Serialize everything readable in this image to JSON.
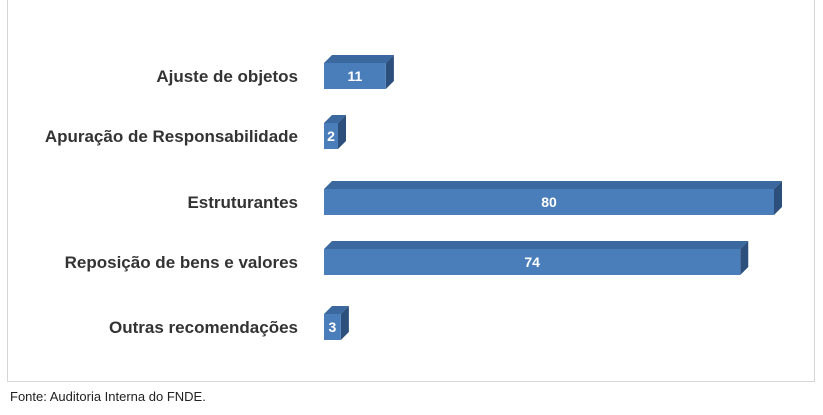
{
  "chart_data": {
    "type": "bar",
    "orientation": "horizontal",
    "categories": [
      "Ajuste de objetos",
      "Apuração de Responsabilidade",
      "Estruturantes",
      "Reposição de bens e valores",
      "Outras recomendações"
    ],
    "values": [
      11,
      2,
      80,
      74,
      3
    ],
    "xlim": [
      0,
      80
    ],
    "grid": false,
    "legend": "none",
    "bar_color": "#4a7ebb"
  },
  "source": "Fonte: Auditoria Interna do FNDE."
}
